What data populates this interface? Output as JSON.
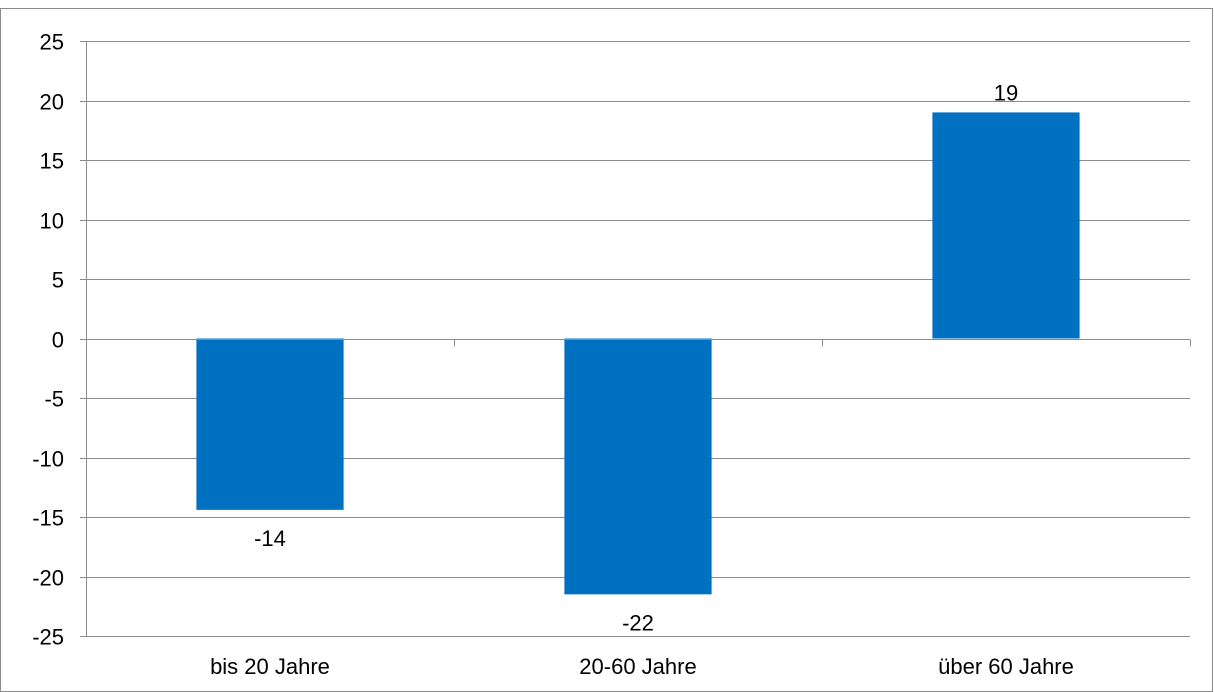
{
  "chart_data": {
    "type": "bar",
    "categories": [
      "bis 20 Jahre",
      "20-60 Jahre",
      "über 60 Jahre"
    ],
    "values": [
      -14.4,
      -21.5,
      19.0
    ],
    "data_labels": [
      "-14",
      "-22",
      "19"
    ],
    "ylim": [
      -25,
      25
    ],
    "yticks": [
      25,
      20,
      15,
      10,
      5,
      0,
      -5,
      -10,
      -15,
      -20,
      -25
    ],
    "grid": true,
    "legend": "none",
    "bar_color": "#0070C0"
  }
}
